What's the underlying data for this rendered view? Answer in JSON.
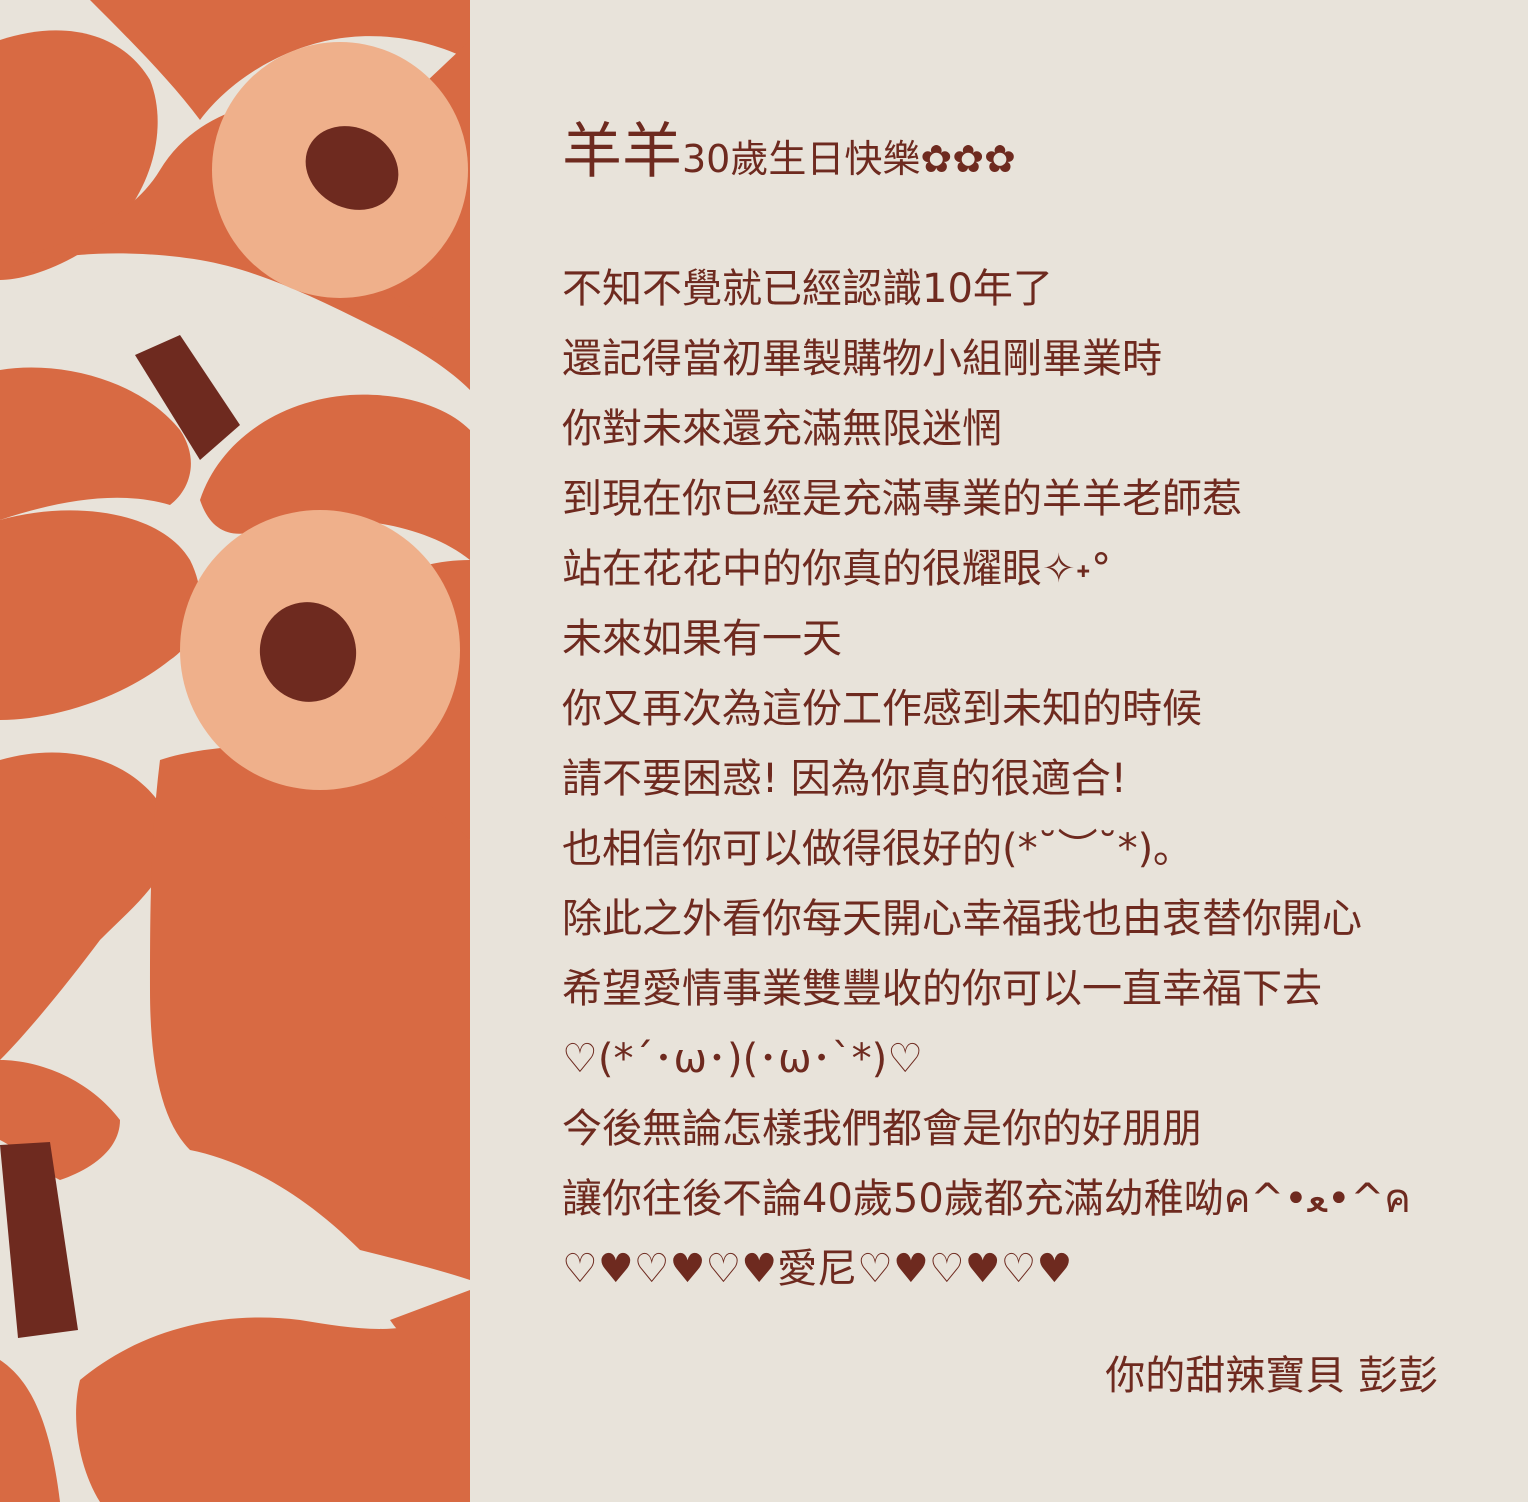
{
  "palette": {
    "background": "#e8e3da",
    "petal": "#d86a43",
    "flower_center_ring": "#efb08b",
    "flower_core": "#6e2a1f",
    "text": "#6e2a1f"
  },
  "title": {
    "name": "羊羊",
    "rest": "30歲生日快樂✿✿✿"
  },
  "message_lines": [
    "不知不覺就已經認識10年了",
    "還記得當初畢製購物小組剛畢業時",
    "你對未來還充滿無限迷惘",
    "到現在你已經是充滿專業的羊羊老師惹",
    "站在花花中的你真的很耀眼✧˖°",
    "未來如果有一天",
    "你又再次為這份工作感到未知的時候",
    "請不要困惑! 因為你真的很適合!",
    "也相信你可以做得很好的(*˘︶˘*)｡",
    "除此之外看你每天開心幸福我也由衷替你開心",
    "希望愛情事業雙豐收的你可以一直幸福下去",
    "♡(*´･ω･)(･ω･`*)♡",
    "今後無論怎樣我們都會是你的好朋朋",
    "讓你往後不論40歲50歲都充滿幼稚呦ค^•ﻌ•^ค",
    "♡♥♡♥♡♥愛尼♡♥♡♥♡♥"
  ],
  "signature": "你的甜辣寶貝 彭彭"
}
